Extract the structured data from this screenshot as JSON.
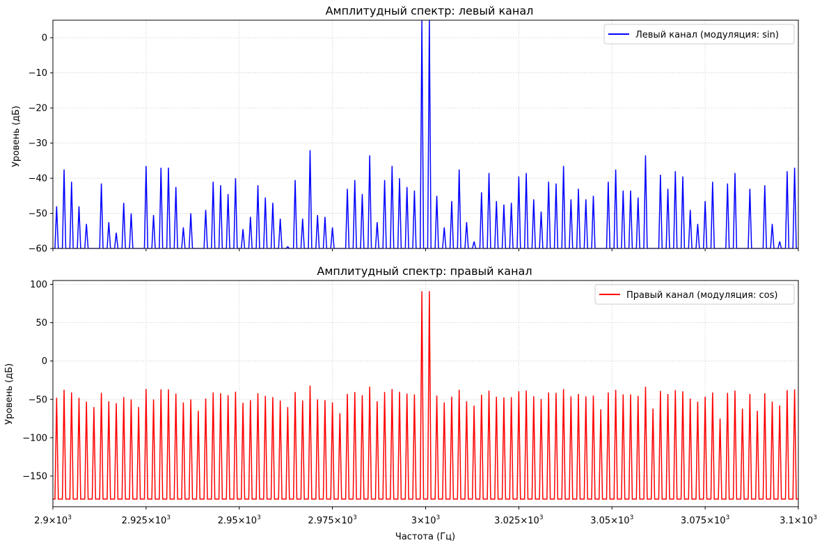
{
  "chart_data": [
    {
      "type": "line",
      "title": "Амплитудный спектр: левый канал",
      "xlabel": "",
      "ylabel": "Уровень (дБ)",
      "xlim": [
        2900,
        3100
      ],
      "ylim": [
        -60,
        5
      ],
      "yticks": [
        0,
        -10,
        -20,
        -30,
        -40,
        -50,
        -60
      ],
      "grid": true,
      "legend_position": "top-right",
      "baseline_db": -60,
      "series": [
        {
          "name": "Левый канал (модуляция: sin)",
          "color": "#0000ff",
          "peaks_x": [
            2901,
            2903,
            2905,
            2907,
            2909,
            2913,
            2915,
            2917,
            2919,
            2921,
            2925,
            2927,
            2929,
            2931,
            2933,
            2935,
            2937,
            2941,
            2943,
            2945,
            2947,
            2949,
            2951,
            2953,
            2955,
            2957,
            2959,
            2961,
            2963,
            2965,
            2967,
            2969,
            2971,
            2973,
            2975,
            2979,
            2981,
            2983,
            2985,
            2987,
            2989,
            2991,
            2993,
            2995,
            2997,
            2999,
            3001,
            3003,
            3005,
            3007,
            3009,
            3011,
            3013,
            3015,
            3017,
            3019,
            3021,
            3023,
            3025,
            3027,
            3029,
            3031,
            3033,
            3035,
            3037,
            3039,
            3041,
            3043,
            3045,
            3049,
            3051,
            3053,
            3055,
            3057,
            3059,
            3063,
            3065,
            3067,
            3069,
            3071,
            3073,
            3075,
            3077,
            3081,
            3083,
            3087,
            3091,
            3093,
            3095,
            3097,
            3099
          ],
          "peaks_db": [
            -48,
            -37.5,
            -41,
            -48,
            -53,
            -41.5,
            -52.5,
            -55.5,
            -47,
            -50,
            -36.5,
            -50.5,
            -37,
            -37,
            -42.5,
            -54,
            -50,
            -49,
            -41,
            -42,
            -44.5,
            -40,
            -54.5,
            -51,
            -42,
            -45.5,
            -47,
            -51.5,
            -59.5,
            -40.5,
            -51.5,
            -32,
            -50.5,
            -51,
            -54,
            -43,
            -40.5,
            -44.5,
            -33.5,
            -52.5,
            -40.5,
            -36.5,
            -40,
            -42.5,
            -43.5,
            5,
            5,
            -45,
            -54,
            -46.5,
            -37.5,
            -52.5,
            -58,
            -44,
            -38.5,
            -46.5,
            -47.5,
            -47,
            -39.5,
            -38.5,
            -46,
            -49.5,
            -41,
            -41.5,
            -36.5,
            -46,
            -43,
            -46,
            -45,
            -41,
            -37.5,
            -43.5,
            -43.5,
            -45.5,
            -33.5,
            -39,
            -43,
            -38,
            -39.5,
            -49,
            -53,
            -46.5,
            -41,
            -41.5,
            -38.5,
            -43,
            -42,
            -53,
            -58,
            -38,
            -37
          ]
        }
      ]
    },
    {
      "type": "line",
      "title": "Амплитудный спектр: правый канал",
      "xlabel": "Частота (Гц)",
      "ylabel": "Уровень (дБ)",
      "xlim": [
        2900,
        3100
      ],
      "ylim": [
        -190,
        105
      ],
      "yticks": [
        100,
        50,
        0,
        -50,
        -100,
        -150
      ],
      "grid": true,
      "legend_position": "top-right",
      "baseline_db": -180,
      "series": [
        {
          "name": "Правый канал (модуляция: cos)",
          "color": "#ff0000",
          "peaks_x": [
            2901,
            2903,
            2905,
            2907,
            2909,
            2911,
            2913,
            2915,
            2917,
            2919,
            2921,
            2923,
            2925,
            2927,
            2929,
            2931,
            2933,
            2935,
            2937,
            2939,
            2941,
            2943,
            2945,
            2947,
            2949,
            2951,
            2953,
            2955,
            2957,
            2959,
            2961,
            2963,
            2965,
            2967,
            2969,
            2971,
            2973,
            2975,
            2977,
            2979,
            2981,
            2983,
            2985,
            2987,
            2989,
            2991,
            2993,
            2995,
            2997,
            2999,
            3001,
            3003,
            3005,
            3007,
            3009,
            3011,
            3013,
            3015,
            3017,
            3019,
            3021,
            3023,
            3025,
            3027,
            3029,
            3031,
            3033,
            3035,
            3037,
            3039,
            3041,
            3043,
            3045,
            3047,
            3049,
            3051,
            3053,
            3055,
            3057,
            3059,
            3061,
            3063,
            3065,
            3067,
            3069,
            3071,
            3073,
            3075,
            3077,
            3079,
            3081,
            3083,
            3085,
            3087,
            3089,
            3091,
            3093,
            3095,
            3097,
            3099
          ],
          "peaks_db": [
            -48,
            -37.5,
            -41,
            -48,
            -53,
            -60,
            -41.5,
            -52.5,
            -55,
            -47,
            -50,
            -60,
            -36.5,
            -50,
            -37,
            -37,
            -42.5,
            -54,
            -50,
            -65,
            -49,
            -41,
            -42,
            -44.5,
            -40,
            -54.5,
            -51,
            -42,
            -45.5,
            -47,
            -51.5,
            -60,
            -40.5,
            -51.5,
            -32,
            -50,
            -51,
            -54,
            -68,
            -43,
            -40.5,
            -44.5,
            -33.5,
            -52.5,
            -40.5,
            -36.5,
            -40,
            -42.5,
            -43.5,
            91,
            91,
            -45,
            -54,
            -46.5,
            -37.5,
            -52.5,
            -58,
            -44,
            -38.5,
            -46.5,
            -47.5,
            -47,
            -39.5,
            -38.5,
            -46,
            -49.5,
            -41,
            -41.5,
            -36.5,
            -46,
            -43,
            -46,
            -45,
            -63,
            -41,
            -37.5,
            -43.5,
            -43.5,
            -45.5,
            -33.5,
            -62,
            -39,
            -43,
            -38,
            -39.5,
            -49,
            -53,
            -46.5,
            -41,
            -75,
            -41.5,
            -38.5,
            -62,
            -43,
            -65,
            -42,
            -53,
            -58,
            -38,
            -37
          ]
        }
      ]
    }
  ],
  "shared_xticks": [
    {
      "value": 2900,
      "mantissa": "2.9",
      "exp": "3"
    },
    {
      "value": 2925,
      "mantissa": "2.925",
      "exp": "3"
    },
    {
      "value": 2950,
      "mantissa": "2.95",
      "exp": "3"
    },
    {
      "value": 2975,
      "mantissa": "2.975",
      "exp": "3"
    },
    {
      "value": 3000,
      "mantissa": "3",
      "exp": "3"
    },
    {
      "value": 3025,
      "mantissa": "3.025",
      "exp": "3"
    },
    {
      "value": 3050,
      "mantissa": "3.05",
      "exp": "3"
    },
    {
      "value": 3075,
      "mantissa": "3.075",
      "exp": "3"
    },
    {
      "value": 3100,
      "mantissa": "3.1",
      "exp": "3"
    }
  ],
  "xtick_times_symbol": "×",
  "xtick_base": "10"
}
